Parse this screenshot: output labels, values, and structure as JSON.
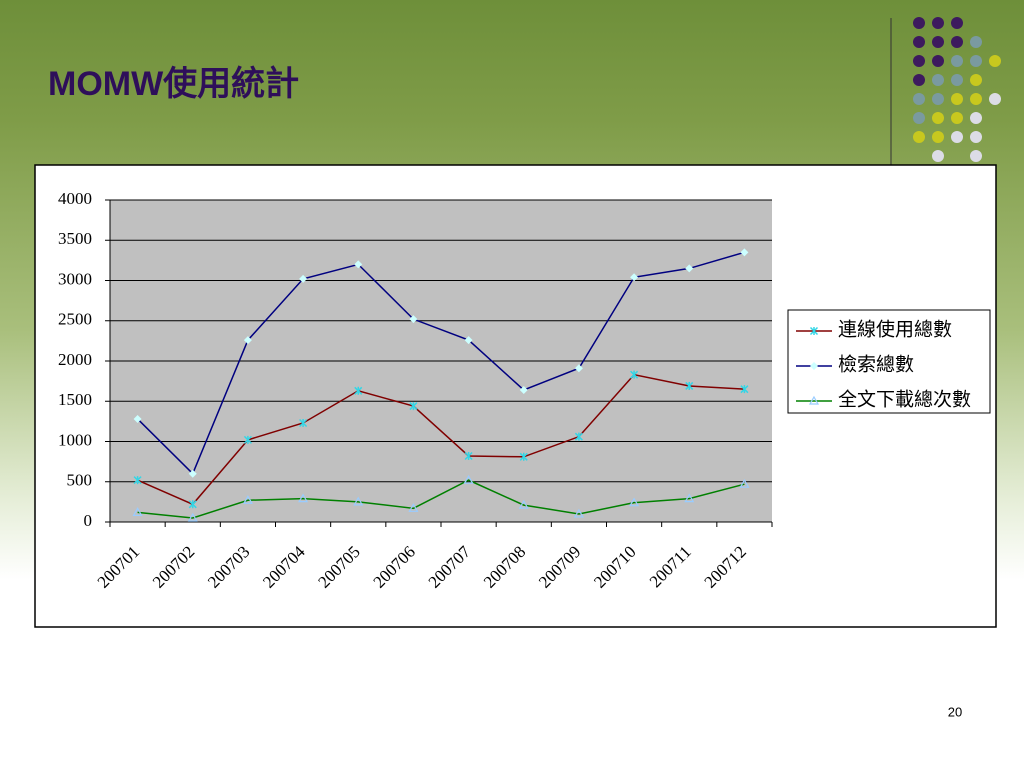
{
  "slide": {
    "title": "MOMW使用統計",
    "page_number": "20"
  },
  "chart_data": {
    "type": "line",
    "categories": [
      "200701",
      "200702",
      "200703",
      "200704",
      "200705",
      "200706",
      "200707",
      "200708",
      "200709",
      "200710",
      "200711",
      "200712"
    ],
    "series": [
      {
        "name": "連線使用總數",
        "color": "#800000",
        "marker": "x",
        "marker_color": "#33d6e6",
        "values": [
          520,
          220,
          1020,
          1230,
          1630,
          1440,
          820,
          810,
          1060,
          1830,
          1690,
          1650
        ]
      },
      {
        "name": "檢索總數",
        "color": "#000080",
        "marker": "diamond",
        "marker_color": "#ccffff",
        "values": [
          1280,
          600,
          2260,
          3020,
          3200,
          2520,
          2260,
          1640,
          1910,
          3040,
          3150,
          3350
        ]
      },
      {
        "name": "全文下載總次數",
        "color": "#008000",
        "marker": "triangle",
        "marker_color": "#99ccff",
        "values": [
          120,
          50,
          270,
          290,
          250,
          170,
          520,
          210,
          100,
          240,
          290,
          470
        ]
      }
    ],
    "ylim": [
      0,
      4000
    ],
    "yticks": [
      0,
      500,
      1000,
      1500,
      2000,
      2500,
      3000,
      3500,
      4000
    ],
    "grid": true,
    "legend": "right"
  }
}
